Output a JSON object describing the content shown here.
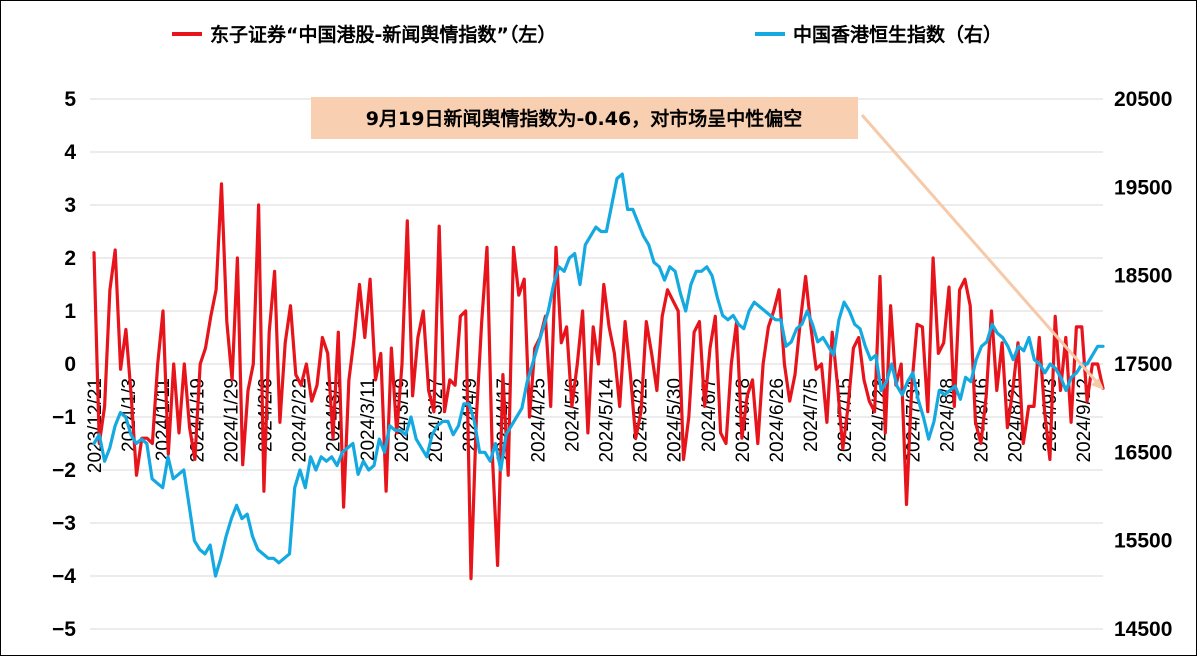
{
  "chart_data": {
    "type": "line",
    "title": "",
    "legend": {
      "placement": "top",
      "items": [
        {
          "label": "东子证券“中国港股-新闻舆情指数”（左）",
          "color": "#e8141b"
        },
        {
          "label": "中国香港恒生指数（右）",
          "color": "#14a9e0"
        }
      ]
    },
    "y_left": {
      "min": -5,
      "max": 5,
      "ticks": [
        "5",
        "4",
        "3",
        "2",
        "1",
        "0",
        "−1",
        "−2",
        "−3",
        "−4",
        "−5"
      ]
    },
    "y_right": {
      "min": 14500,
      "max": 20500,
      "ticks": [
        "20500",
        "19500",
        "18500",
        "17500",
        "16500",
        "15500",
        "14500"
      ]
    },
    "x_tick_labels": [
      "2023/12/21",
      "2024/1/3",
      "2024/1/11",
      "2024/1/19",
      "2024/1/29",
      "2024/2/6",
      "2024/2/22",
      "2024/3/1",
      "2024/3/11",
      "2024/3/19",
      "2024/3/27",
      "2024/4/9",
      "2024/4/17",
      "2024/4/25",
      "2024/5/6",
      "2024/5/14",
      "2024/5/22",
      "2024/5/30",
      "2024/6/7",
      "2024/6/18",
      "2024/6/26",
      "2024/7/5",
      "2024/7/15",
      "2024/7/23",
      "2024/7/31",
      "2024/8/8",
      "2024/8/16",
      "2024/8/26",
      "2024/9/3",
      "2024/9/12"
    ],
    "series": [
      {
        "name": "东子证券“中国港股-新闻舆情指数”（左）",
        "axis": "left",
        "color": "#e8141b",
        "values": [
          2.1,
          -1.5,
          -0.8,
          1.4,
          2.15,
          -0.1,
          0.65,
          -0.6,
          -2.1,
          -1.4,
          -1.4,
          -1.5,
          0.0,
          1.0,
          -1.7,
          0.0,
          -1.3,
          0.0,
          -1.2,
          -1.8,
          0.0,
          0.3,
          0.9,
          1.4,
          3.4,
          0.8,
          -0.3,
          2.0,
          -1.9,
          -0.5,
          0.0,
          3.0,
          -2.4,
          0.6,
          1.75,
          -1.1,
          0.4,
          1.1,
          -0.2,
          -0.4,
          0.0,
          -0.7,
          -0.4,
          0.5,
          0.2,
          -1.4,
          0.6,
          -2.7,
          -0.3,
          0.5,
          1.5,
          0.5,
          1.6,
          -0.3,
          0.2,
          -2.4,
          0.3,
          -1.3,
          0.0,
          2.7,
          -0.6,
          0.5,
          1.0,
          -0.5,
          -0.9,
          2.6,
          -0.9,
          -0.3,
          -0.4,
          0.9,
          1.0,
          -4.05,
          -1.0,
          0.8,
          2.2,
          -1.7,
          -3.8,
          -0.2,
          -2.1,
          2.2,
          1.3,
          1.6,
          -1.0,
          0.3,
          0.5,
          0.9,
          -0.8,
          2.2,
          0.4,
          0.7,
          -0.8,
          0.0,
          1.0,
          -1.3,
          0.7,
          0.0,
          1.5,
          0.7,
          0.2,
          -0.8,
          0.8,
          -0.2,
          -1.4,
          -0.9,
          0.8,
          0.2,
          -0.5,
          0.9,
          1.4,
          1.2,
          1.0,
          -1.8,
          -1.0,
          0.6,
          0.8,
          -0.8,
          0.3,
          0.9,
          -1.3,
          -1.5,
          0.0,
          0.8,
          -1.4,
          -0.6,
          -0.3,
          -1.5,
          0.0,
          0.7,
          1.0,
          1.4,
          0.0,
          -0.7,
          -0.2,
          0.8,
          1.65,
          0.7,
          -0.1,
          0.0,
          -1.1,
          0.6,
          -0.4,
          -1.6,
          -0.8,
          0.3,
          0.5,
          -0.3,
          -0.7,
          -0.9,
          1.65,
          -1.3,
          1.1,
          -0.4,
          0.0,
          -2.65,
          -0.4,
          0.75,
          0.7,
          -0.9,
          2.0,
          0.2,
          0.4,
          1.45,
          -0.8,
          1.4,
          1.6,
          1.1,
          -1.1,
          -1.5,
          -0.6,
          1.0,
          -0.5,
          0.4,
          -1.2,
          -0.5,
          0.4,
          -1.5,
          -0.8,
          -0.8,
          0.5,
          -0.9,
          -1.8,
          0.9,
          -0.5,
          0.5,
          -1.1,
          0.7,
          0.7,
          -0.7,
          0.0,
          0.0,
          -0.46
        ]
      },
      {
        "name": "中国香港恒生指数（右）",
        "axis": "right",
        "color": "#14a9e0",
        "values": [
          16600,
          16700,
          16400,
          16550,
          16800,
          16950,
          16900,
          16700,
          16600,
          16650,
          16600,
          16200,
          16150,
          16100,
          16450,
          16200,
          16250,
          16300,
          15900,
          15500,
          15400,
          15350,
          15450,
          15100,
          15300,
          15550,
          15750,
          15900,
          15750,
          15800,
          15550,
          15400,
          15350,
          15300,
          15300,
          15250,
          15300,
          15350,
          16100,
          16300,
          16100,
          16450,
          16300,
          16450,
          16400,
          16450,
          16350,
          16500,
          16550,
          16600,
          16250,
          16400,
          16300,
          16350,
          16650,
          16500,
          16800,
          16750,
          16750,
          16700,
          16900,
          16650,
          16550,
          16450,
          16700,
          16800,
          16850,
          16850,
          16700,
          16800,
          17050,
          17050,
          16850,
          16500,
          16500,
          16400,
          16600,
          16300,
          16700,
          16800,
          16900,
          17000,
          17300,
          17500,
          17700,
          17900,
          18100,
          18400,
          18600,
          18550,
          18700,
          18750,
          18400,
          18850,
          18950,
          19050,
          19000,
          19000,
          19300,
          19600,
          19650,
          19250,
          19250,
          19100,
          18950,
          18850,
          18650,
          18600,
          18450,
          18600,
          18550,
          18300,
          18100,
          18400,
          18550,
          18550,
          18600,
          18500,
          18250,
          18050,
          18000,
          18050,
          17950,
          17900,
          18100,
          18200,
          18150,
          18100,
          18050,
          18000,
          18000,
          17700,
          17750,
          17900,
          17950,
          18100,
          17950,
          17750,
          17800,
          17700,
          17600,
          18000,
          18200,
          18100,
          17950,
          17900,
          17700,
          17550,
          17600,
          17200,
          17300,
          17500,
          17250,
          17150,
          17300,
          17400,
          17100,
          16900,
          16650,
          16850,
          17200,
          17150,
          17200,
          17250,
          17100,
          17350,
          17300,
          17550,
          17700,
          17750,
          17950,
          17850,
          17800,
          17700,
          17550,
          17700,
          17650,
          17800,
          17550,
          17500,
          17400,
          17500,
          17450,
          17350,
          17200,
          17350,
          17400,
          17500,
          17500,
          17600,
          17700,
          17700
        ]
      }
    ],
    "annotation": {
      "text": "9月19日新闻舆情指数为-0.46，对市场呈中性偏空",
      "box_color": "#f8cfb0",
      "arrow_color": "#f6c9a8"
    }
  }
}
